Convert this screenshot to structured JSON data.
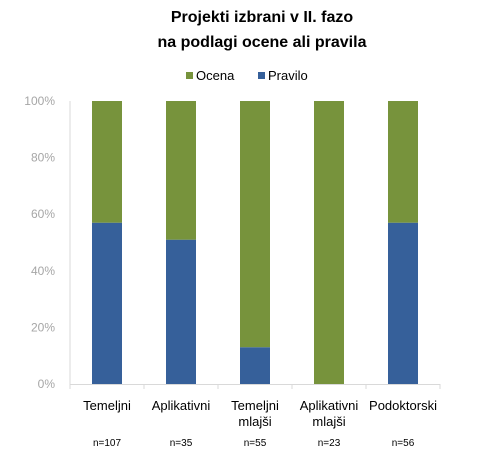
{
  "chart_data": {
    "type": "bar",
    "stacked": true,
    "title_lines": [
      "Projekti izbrani v II. fazo",
      "na podlagi ocene ali pravila"
    ],
    "categories": [
      [
        "Temeljni"
      ],
      [
        "Aplikativni"
      ],
      [
        "Temeljni",
        "mlajši"
      ],
      [
        "Aplikativni",
        "mlajši"
      ],
      [
        "Podoktorski"
      ]
    ],
    "counts": [
      "n=107",
      "n=35",
      "n=55",
      "n=23",
      "n=56"
    ],
    "series": [
      {
        "name": "Pravilo",
        "color": "#36609a",
        "values": [
          57,
          51,
          13,
          0,
          57
        ]
      },
      {
        "name": "Ocena",
        "color": "#77933c",
        "values": [
          43,
          49,
          87,
          100,
          43
        ]
      }
    ],
    "legend": [
      {
        "name": "Ocena",
        "color": "#77933c"
      },
      {
        "name": "Pravilo",
        "color": "#36609a"
      }
    ],
    "legend_position": "top",
    "y_ticks": [
      "0%",
      "20%",
      "40%",
      "60%",
      "80%",
      "100%"
    ],
    "ylim": [
      0,
      100
    ],
    "grid": false
  }
}
